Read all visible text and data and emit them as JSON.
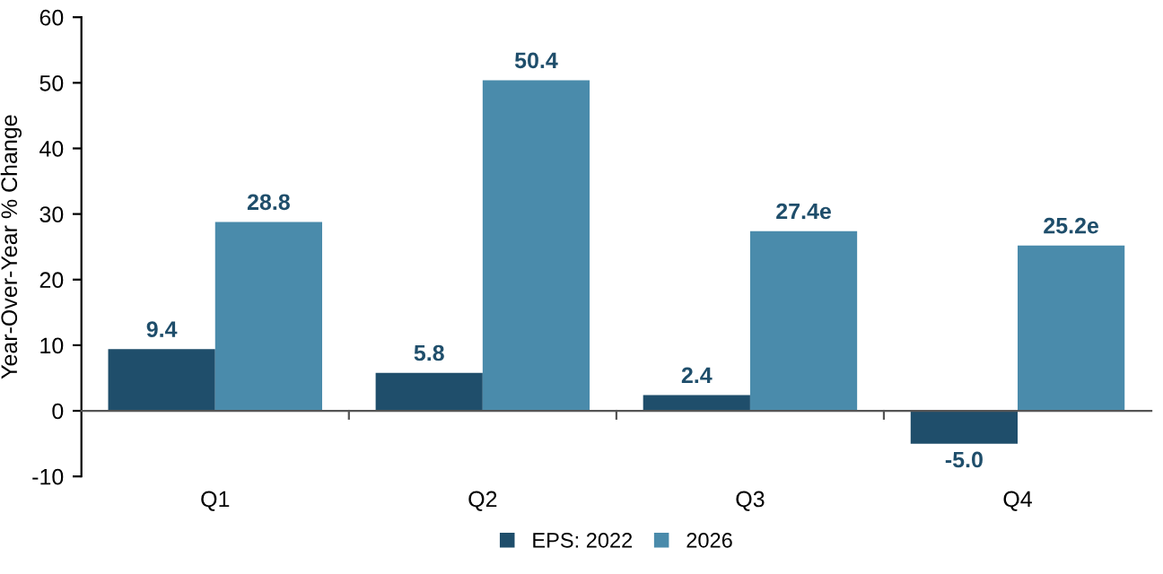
{
  "chart_data": {
    "type": "bar",
    "ylabel": "Year-Over-Year % Change",
    "categories": [
      "Q1",
      "Q2",
      "Q3",
      "Q4"
    ],
    "series": [
      {
        "name": "EPS: 2022",
        "color": "#1f4e6b",
        "values": [
          9.4,
          5.8,
          2.4,
          -5.0
        ],
        "value_labels": [
          "9.4",
          "5.8",
          "2.4",
          "-5.0"
        ]
      },
      {
        "name": "2026",
        "color": "#4a8bab",
        "values": [
          28.8,
          50.4,
          27.4,
          25.2
        ],
        "value_labels": [
          "28.8",
          "50.4",
          "27.4e",
          "25.2e"
        ]
      }
    ],
    "ylim": [
      -10,
      60
    ],
    "yticks": [
      -10,
      0,
      10,
      20,
      30,
      40,
      50,
      60
    ],
    "legend": "bottom"
  }
}
